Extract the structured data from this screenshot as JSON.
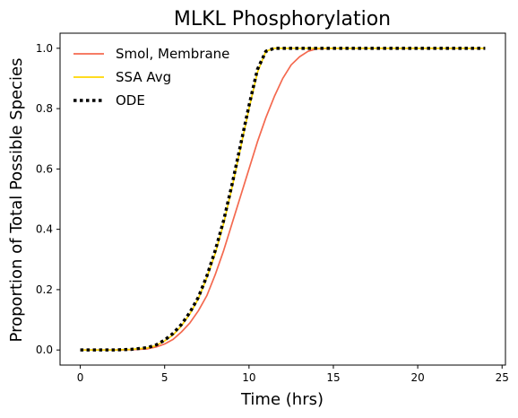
{
  "chart_data": {
    "type": "line",
    "title": "MLKL Phosphorylation",
    "xlabel": "Time (hrs)",
    "ylabel": "Proportion of Total Possible Species",
    "xlim": [
      -1.2,
      25.2
    ],
    "ylim": [
      -0.05,
      1.05
    ],
    "xticks": [
      0,
      5,
      10,
      15,
      20,
      25
    ],
    "yticks": [
      0.0,
      0.2,
      0.4,
      0.6,
      0.8,
      1.0
    ],
    "xtick_labels": [
      "0",
      "5",
      "10",
      "15",
      "20",
      "25"
    ],
    "ytick_labels": [
      "0.0",
      "0.2",
      "0.4",
      "0.6",
      "0.8",
      "1.0"
    ],
    "grid": false,
    "legend_position": "top-left",
    "series": [
      {
        "name": "Smol, Membrane",
        "color": "#f4694f",
        "style": "solid",
        "x": [
          0,
          1,
          2,
          3,
          4,
          4.5,
          5,
          5.5,
          6,
          6.5,
          7,
          7.5,
          8,
          8.5,
          9,
          9.5,
          10,
          10.5,
          11,
          11.5,
          12,
          12.5,
          13,
          13.5,
          14,
          15,
          16,
          18,
          20,
          22,
          24
        ],
        "values": [
          0.0,
          0.0,
          0.0,
          0.001,
          0.004,
          0.01,
          0.02,
          0.035,
          0.06,
          0.09,
          0.13,
          0.18,
          0.25,
          0.33,
          0.42,
          0.51,
          0.6,
          0.69,
          0.77,
          0.84,
          0.9,
          0.945,
          0.972,
          0.99,
          0.998,
          1.0,
          1.0,
          1.0,
          1.0,
          1.0,
          1.0
        ]
      },
      {
        "name": "SSA Avg",
        "color": "#ffd700",
        "style": "solid",
        "x": [
          0,
          1,
          2,
          3,
          4,
          4.5,
          5,
          5.5,
          6,
          6.5,
          7,
          7.5,
          8,
          8.5,
          9,
          9.5,
          10,
          10.5,
          11,
          11.5,
          12,
          13,
          14,
          16,
          18,
          20,
          22,
          24
        ],
        "values": [
          0.0,
          0.0,
          0.0,
          0.002,
          0.007,
          0.015,
          0.03,
          0.05,
          0.08,
          0.12,
          0.17,
          0.24,
          0.32,
          0.42,
          0.54,
          0.67,
          0.8,
          0.92,
          0.99,
          1.0,
          1.0,
          1.0,
          1.0,
          1.0,
          1.0,
          1.0,
          1.0,
          1.0
        ]
      },
      {
        "name": "ODE",
        "color": "#000000",
        "style": "dotted",
        "x": [
          0,
          1,
          2,
          3,
          4,
          4.5,
          5,
          5.5,
          6,
          6.5,
          7,
          7.5,
          8,
          8.5,
          9,
          9.5,
          10,
          10.5,
          11,
          11.5,
          12,
          13,
          14,
          16,
          18,
          20,
          22,
          24
        ],
        "values": [
          0.0,
          0.0,
          0.0,
          0.002,
          0.008,
          0.017,
          0.033,
          0.055,
          0.085,
          0.125,
          0.175,
          0.245,
          0.33,
          0.43,
          0.55,
          0.68,
          0.81,
          0.93,
          0.99,
          1.0,
          1.0,
          1.0,
          1.0,
          1.0,
          1.0,
          1.0,
          1.0,
          1.0
        ]
      }
    ]
  }
}
